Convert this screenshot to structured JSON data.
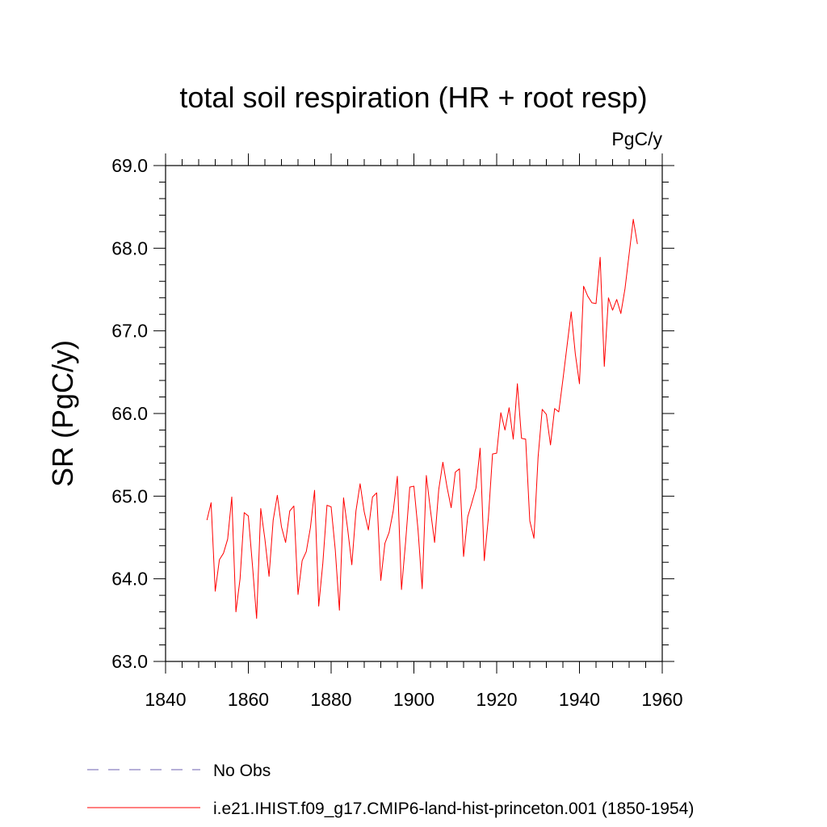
{
  "chart_data": {
    "type": "line",
    "title": "total soil respiration (HR + root resp)",
    "units": "PgC/y",
    "ylabel": "SR  (PgC/y)",
    "xlabel": "",
    "xlim": [
      1840,
      1960
    ],
    "ylim": [
      63.0,
      69.0
    ],
    "xticks": [
      "1840",
      "1860",
      "1880",
      "1900",
      "1920",
      "1940",
      "1960"
    ],
    "yticks": [
      "63.0",
      "64.0",
      "65.0",
      "66.0",
      "67.0",
      "68.0",
      "69.0"
    ],
    "grid": false,
    "legend_position": "bottom-left",
    "legend": [
      {
        "label": "No Obs",
        "color": "#8a80c0",
        "style": "dashed"
      },
      {
        "label": "i.e21.IHIST.f09_g17.CMIP6-land-hist-princeton.001 (1850-1954)",
        "color": "#ff0000",
        "style": "solid"
      }
    ],
    "series": [
      {
        "name": "i.e21.IHIST.f09_g17.CMIP6-land-hist-princeton.001 (1850-1954)",
        "color": "#ff0000",
        "x": [
          1850,
          1851,
          1852,
          1853,
          1854,
          1855,
          1856,
          1857,
          1858,
          1859,
          1860,
          1861,
          1862,
          1863,
          1864,
          1865,
          1866,
          1867,
          1868,
          1869,
          1870,
          1871,
          1872,
          1873,
          1874,
          1875,
          1876,
          1877,
          1878,
          1879,
          1880,
          1881,
          1882,
          1883,
          1884,
          1885,
          1886,
          1887,
          1888,
          1889,
          1890,
          1891,
          1892,
          1893,
          1894,
          1895,
          1896,
          1897,
          1898,
          1899,
          1900,
          1901,
          1902,
          1903,
          1904,
          1905,
          1906,
          1907,
          1908,
          1909,
          1910,
          1911,
          1912,
          1913,
          1914,
          1915,
          1916,
          1917,
          1918,
          1919,
          1920,
          1921,
          1922,
          1923,
          1924,
          1925,
          1926,
          1927,
          1928,
          1929,
          1930,
          1931,
          1932,
          1933,
          1934,
          1935,
          1936,
          1937,
          1938,
          1939,
          1940,
          1941,
          1942,
          1943,
          1944,
          1945,
          1946,
          1947,
          1948,
          1949,
          1950,
          1951,
          1952,
          1953,
          1954
        ],
        "y": [
          64.71,
          64.92,
          63.85,
          64.23,
          64.31,
          64.48,
          64.99,
          63.6,
          64.0,
          64.8,
          64.76,
          64.16,
          63.52,
          64.85,
          64.48,
          64.03,
          64.71,
          65.01,
          64.63,
          64.44,
          64.82,
          64.88,
          63.81,
          64.22,
          64.33,
          64.62,
          65.07,
          63.67,
          64.19,
          64.89,
          64.87,
          64.35,
          63.62,
          64.98,
          64.6,
          64.17,
          64.82,
          65.15,
          64.81,
          64.59,
          64.99,
          65.04,
          63.98,
          64.43,
          64.56,
          64.82,
          65.24,
          63.87,
          64.45,
          65.11,
          65.12,
          64.59,
          63.88,
          65.25,
          64.83,
          64.44,
          65.08,
          65.41,
          65.11,
          64.86,
          65.29,
          65.33,
          64.27,
          64.75,
          64.92,
          65.1,
          65.58,
          64.22,
          64.74,
          65.51,
          65.52,
          66.01,
          65.8,
          66.07,
          65.69,
          66.36,
          65.7,
          65.69,
          64.7,
          64.49,
          65.47,
          66.05,
          65.99,
          65.62,
          66.06,
          66.02,
          66.41,
          66.82,
          67.23,
          66.72,
          66.36,
          67.54,
          67.42,
          67.34,
          67.33,
          67.89,
          66.57,
          67.4,
          67.25,
          67.38,
          67.21,
          67.51,
          67.93,
          68.35,
          68.05
        ]
      }
    ]
  }
}
